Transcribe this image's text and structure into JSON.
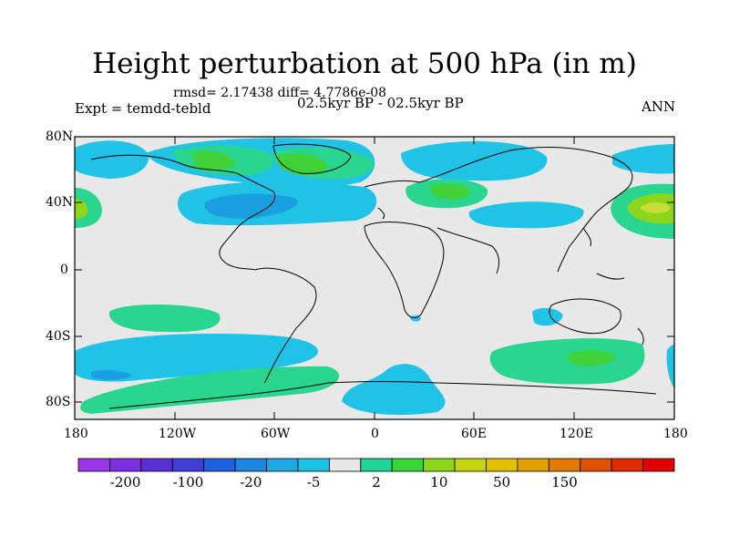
{
  "title": "Height perturbation at 500 hPa (in m)",
  "stats": "rmsd= 2.17438 diff= 4.7786e-08",
  "expt": "Expt = temdd-tebld",
  "period": "02.5kyr BP - 02.5kyr BP",
  "season": "ANN",
  "lat_ticks": [
    "80N",
    "40N",
    "0",
    "40S",
    "80S"
  ],
  "lon_ticks": [
    "180",
    "120W",
    "60W",
    "0",
    "60E",
    "120E",
    "180"
  ],
  "colorbar": {
    "colors": [
      "#9a35e8",
      "#7b2fe0",
      "#5a2fd6",
      "#3f3fd8",
      "#1f5fe0",
      "#1f86e0",
      "#22a7e2",
      "#1cc3e6",
      "#e8e8e8",
      "#22d49a",
      "#3ad43a",
      "#8ed61a",
      "#c4d40e",
      "#e0c000",
      "#e0a000",
      "#e07a00",
      "#e05000",
      "#e02a00",
      "#e00000"
    ],
    "labels": [
      "-200",
      "-100",
      "-20",
      "-5",
      "2",
      "10",
      "50",
      "150"
    ]
  }
}
